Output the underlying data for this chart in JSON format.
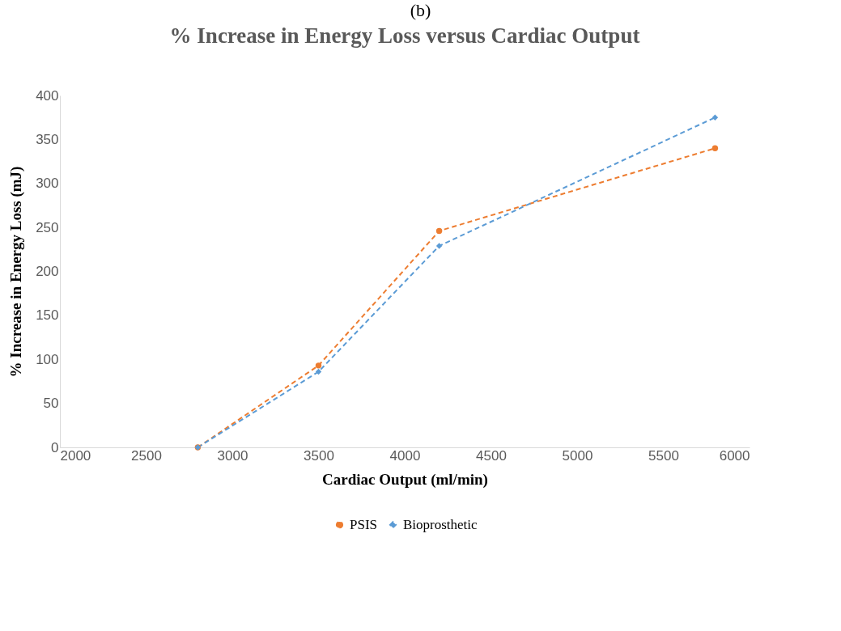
{
  "chart_data": {
    "type": "line",
    "title": "% Increase in Energy Loss versus Cardiac Output",
    "xlabel": "Cardiac Output (ml/min)",
    "ylabel": "% Increase in Energy Loss (mJ)",
    "annotations": [
      "(b)"
    ],
    "xlim": [
      2000,
      6000
    ],
    "xticks": [
      2000,
      2500,
      3000,
      3500,
      4000,
      4500,
      5000,
      5500,
      6000
    ],
    "ylim": [
      0,
      400
    ],
    "yticks": [
      0,
      50,
      100,
      150,
      200,
      250,
      300,
      350,
      400
    ],
    "grid": false,
    "legend": "bottom",
    "line_style": "dashed",
    "x": [
      2800,
      3500,
      4200,
      5800
    ],
    "series": [
      {
        "name": "PSIS",
        "color": "#ed7d31",
        "marker": "circle",
        "values": [
          0,
          93,
          246,
          340
        ]
      },
      {
        "name": "Bioprosthetic",
        "color": "#5b9bd5",
        "marker": "diamond",
        "values": [
          0,
          86,
          229,
          375
        ]
      }
    ]
  }
}
